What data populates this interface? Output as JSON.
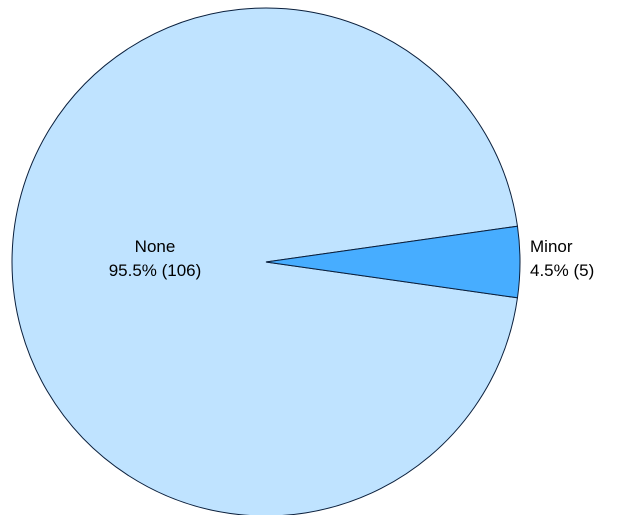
{
  "chart_data": {
    "type": "pie",
    "title": "",
    "slices": [
      {
        "name": "None",
        "percent": 95.5,
        "count": 106,
        "value_label": "95.5% (106)",
        "color": "#bfe3ff"
      },
      {
        "name": "Minor",
        "percent": 4.5,
        "count": 5,
        "value_label": "4.5% (5)",
        "color": "#47adff"
      }
    ],
    "legend": "none",
    "labels": "on slices / outside small slice"
  }
}
